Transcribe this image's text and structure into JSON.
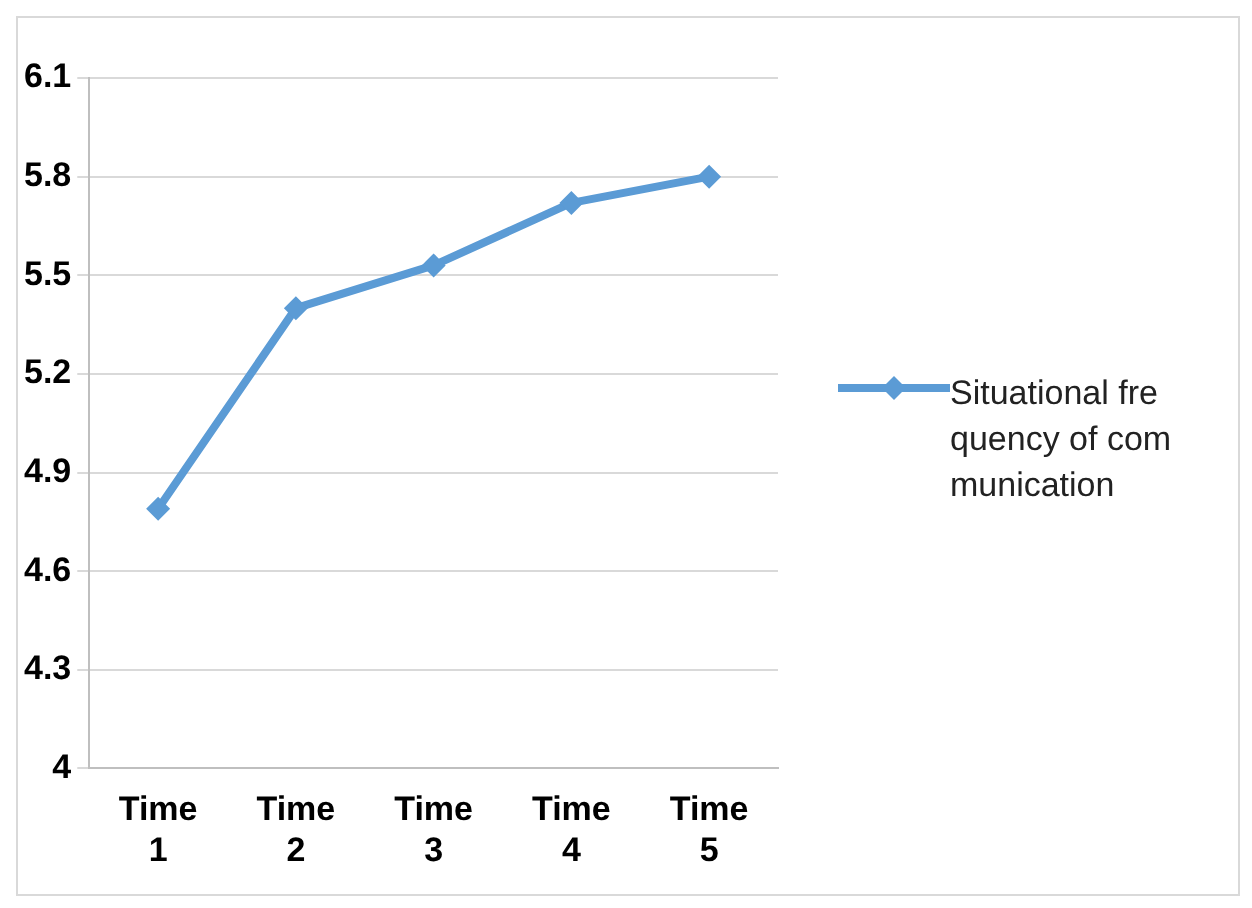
{
  "chart_data": {
    "type": "line",
    "categories": [
      "Time 1",
      "Time 2",
      "Time 3",
      "Time 4",
      "Time 5"
    ],
    "series": [
      {
        "name": "Situational frequency of communication",
        "color": "#5b9bd5",
        "values": [
          4.79,
          5.4,
          5.53,
          5.72,
          5.8
        ]
      }
    ],
    "ylim": [
      4,
      6.1
    ],
    "yticks": [
      4,
      4.3,
      4.6,
      4.9,
      5.2,
      5.5,
      5.8,
      6.1
    ],
    "grid": "y",
    "legend": "right",
    "marker": "diamond",
    "line_style": "solid"
  }
}
